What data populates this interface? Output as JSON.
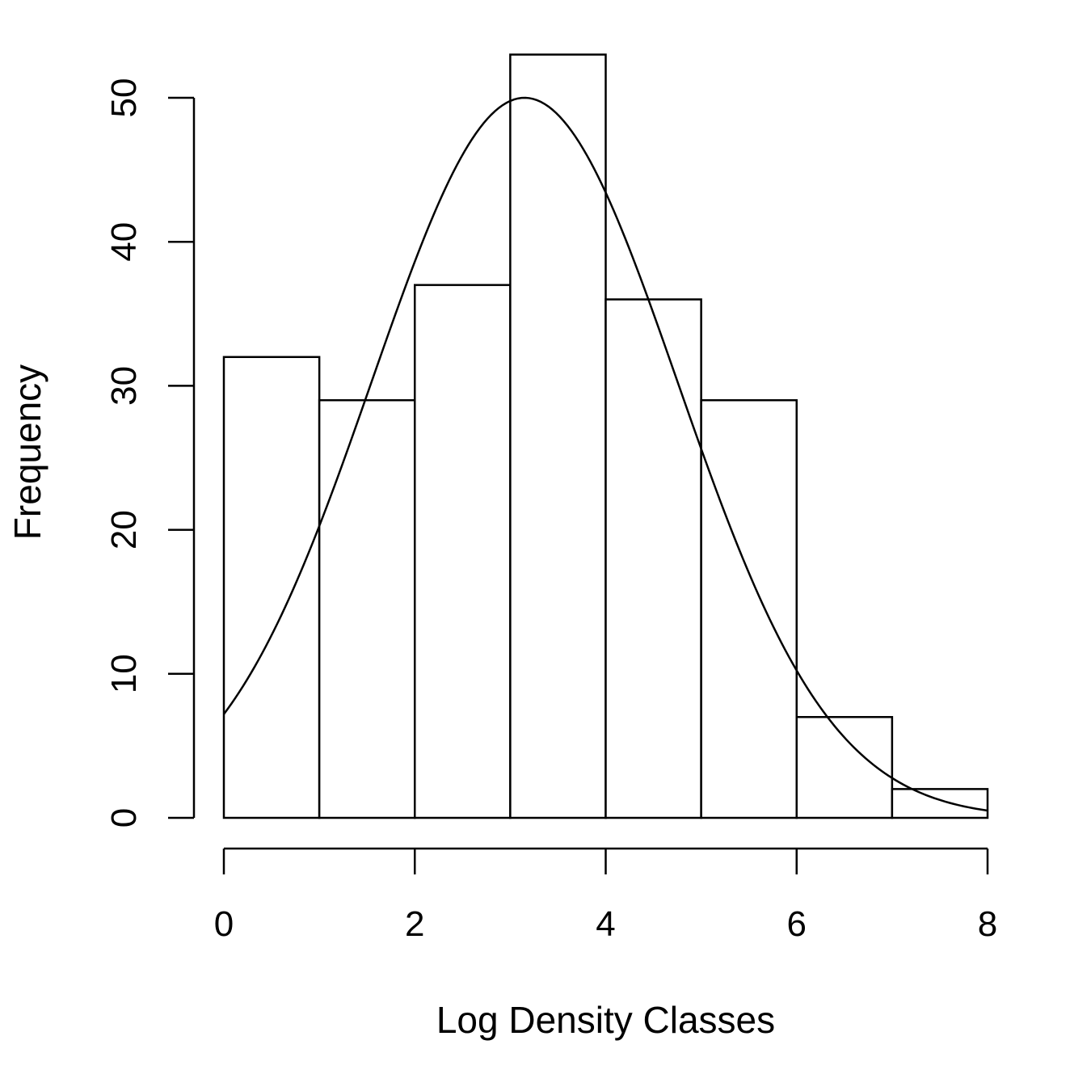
{
  "chart_data": {
    "type": "bar",
    "subtype": "histogram-with-normal-curve",
    "title": "",
    "xlabel": "Log Density Classes",
    "ylabel": "Frequency",
    "bins": [
      {
        "from": 0,
        "to": 1,
        "count": 32
      },
      {
        "from": 1,
        "to": 2,
        "count": 29
      },
      {
        "from": 2,
        "to": 3,
        "count": 37
      },
      {
        "from": 3,
        "to": 4,
        "count": 53
      },
      {
        "from": 4,
        "to": 5,
        "count": 36
      },
      {
        "from": 5,
        "to": 6,
        "count": 29
      },
      {
        "from": 6,
        "to": 7,
        "count": 7
      },
      {
        "from": 7,
        "to": 8,
        "count": 2
      }
    ],
    "xlim": [
      0,
      8
    ],
    "ylim": [
      0,
      53
    ],
    "x_ticks": [
      "0",
      "2",
      "4",
      "6",
      "8"
    ],
    "y_ticks": [
      "0",
      "10",
      "20",
      "30",
      "40",
      "50"
    ],
    "curve": {
      "kind": "normal",
      "mean": 3.15,
      "sd": 1.6,
      "peak": 50
    },
    "grid": false,
    "legend": "none"
  }
}
